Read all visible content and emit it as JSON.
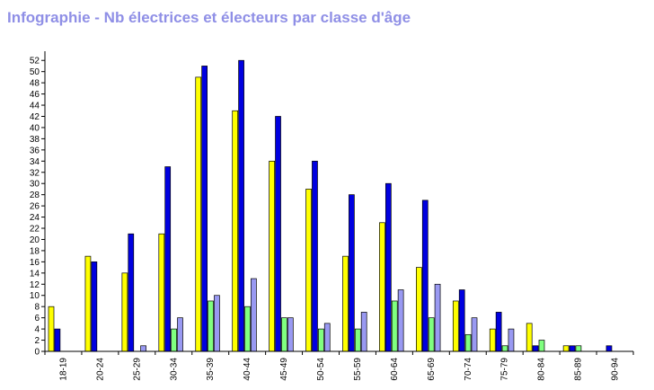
{
  "title": "Infographie - Nb électrices et électeurs par classe d'âge",
  "colors": {
    "background": "#ffffff",
    "title": "#8f8fe6",
    "axis": "#000000",
    "series": [
      "#ffff00",
      "#0000e0",
      "#80ff80",
      "#9999f2"
    ]
  },
  "chart_data": {
    "type": "bar",
    "title": "Infographie - Nb électrices et électeurs par classe d'âge",
    "xlabel": "",
    "ylabel": "",
    "ylim": [
      0,
      53
    ],
    "yticks": [
      0,
      2,
      4,
      6,
      8,
      10,
      12,
      14,
      16,
      18,
      20,
      22,
      24,
      26,
      28,
      30,
      32,
      34,
      36,
      38,
      40,
      42,
      44,
      46,
      48,
      50,
      52
    ],
    "grid": false,
    "legend": "none",
    "categories": [
      "18-19",
      "20-24",
      "25-29",
      "30-34",
      "35-39",
      "40-44",
      "45-49",
      "50-54",
      "55-59",
      "60-64",
      "65-69",
      "70-74",
      "75-79",
      "80-84",
      "85-89",
      "90-94"
    ],
    "series": [
      {
        "values": [
          8,
          17,
          14,
          21,
          49,
          43,
          34,
          29,
          17,
          23,
          15,
          9,
          4,
          5,
          1,
          0
        ]
      },
      {
        "values": [
          4,
          16,
          21,
          33,
          51,
          52,
          42,
          34,
          28,
          30,
          27,
          11,
          7,
          1,
          1,
          1
        ]
      },
      {
        "values": [
          0,
          0,
          0,
          4,
          9,
          8,
          6,
          4,
          4,
          9,
          6,
          3,
          1,
          2,
          1,
          0
        ]
      },
      {
        "values": [
          0,
          0,
          1,
          6,
          10,
          13,
          6,
          5,
          7,
          11,
          12,
          6,
          4,
          0,
          0,
          0
        ]
      }
    ]
  }
}
